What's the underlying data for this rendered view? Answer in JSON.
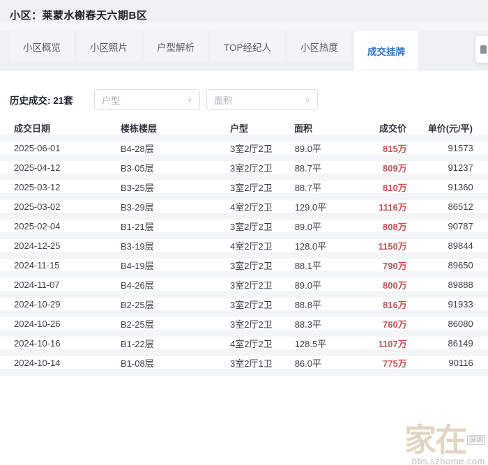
{
  "header": {
    "title": "小区：莱蒙水榭春天六期B区"
  },
  "tabs": [
    {
      "label": "小区概览",
      "active": false
    },
    {
      "label": "小区照片",
      "active": false
    },
    {
      "label": "户型解析",
      "active": false
    },
    {
      "label": "TOP经纪人",
      "active": false
    },
    {
      "label": "小区热度",
      "active": false
    },
    {
      "label": "成交挂牌",
      "active": true
    }
  ],
  "filters": {
    "summary_label": "历史成交:",
    "summary_count": "21套",
    "dropdowns": [
      {
        "placeholder": "户型"
      },
      {
        "placeholder": "面积"
      }
    ]
  },
  "table": {
    "columns": [
      "成交日期",
      "楼栋楼层",
      "户型",
      "面积",
      "成交价",
      "单价(元/平)"
    ],
    "rows": [
      [
        "2025-06-01",
        "B4-28层",
        "3室2厅2卫",
        "89.0平",
        "815万",
        "91573"
      ],
      [
        "2025-04-12",
        "B3-05层",
        "3室2厅2卫",
        "88.7平",
        "809万",
        "91237"
      ],
      [
        "2025-03-12",
        "B3-25层",
        "3室2厅2卫",
        "88.7平",
        "810万",
        "91360"
      ],
      [
        "2025-03-02",
        "B3-29层",
        "4室2厅2卫",
        "129.0平",
        "1116万",
        "86512"
      ],
      [
        "2025-02-04",
        "B1-21层",
        "3室2厅2卫",
        "89.0平",
        "808万",
        "90787"
      ],
      [
        "2024-12-25",
        "B3-19层",
        "4室2厅2卫",
        "128.0平",
        "1150万",
        "89844"
      ],
      [
        "2024-11-15",
        "B4-19层",
        "3室2厅2卫",
        "88.1平",
        "790万",
        "89650"
      ],
      [
        "2024-11-07",
        "B4-26层",
        "3室2厅2卫",
        "89.0平",
        "800万",
        "89888"
      ],
      [
        "2024-10-29",
        "B2-25层",
        "3室2厅2卫",
        "88.8平",
        "816万",
        "91933"
      ],
      [
        "2024-10-26",
        "B2-25层",
        "3室2厅2卫",
        "88.3平",
        "760万",
        "86080"
      ],
      [
        "2024-10-16",
        "B1-22层",
        "4室2厅2卫",
        "128.5平",
        "1107万",
        "86149"
      ],
      [
        "2024-10-14",
        "B1-08层",
        "3室2厅1卫",
        "86.0平",
        "775万",
        "90116"
      ]
    ]
  },
  "watermark": {
    "brand": "家在",
    "badge": "深圳",
    "url": "bbs.szhome.com"
  },
  "colors": {
    "accent_blue": "#2f72c6",
    "price_red": "#c25555",
    "top_band_bg": "#eef0f3",
    "row_gap": "#f4f5f7"
  }
}
